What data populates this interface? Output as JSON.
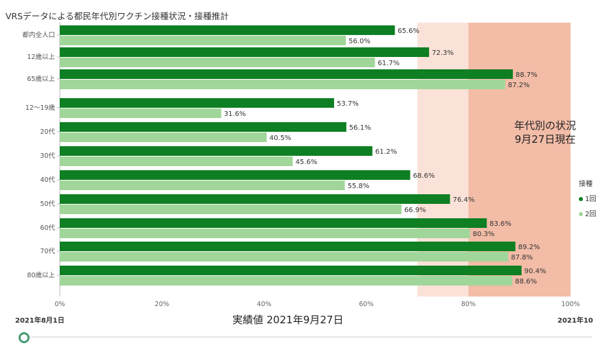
{
  "title": "VRSデータによる都民年代別ワクチン接種状況・接種推計",
  "note_lines": [
    "年代別の状況",
    "9月27日現在"
  ],
  "legend": {
    "title": "接種",
    "items": [
      {
        "label": "1回",
        "color": "#0e7f22"
      },
      {
        "label": "2回",
        "color": "#a1d69a"
      }
    ]
  },
  "slider": {
    "start_label": "2021年8月1日",
    "current_label": "実績値  2021年9月27日",
    "end_label": "2021年10",
    "progress": 0.0
  },
  "chart_data": {
    "type": "bar",
    "orientation": "horizontal",
    "categories": [
      "都内全人口",
      "12歳以上",
      "65歳以上",
      "12～19歳",
      "20代",
      "30代",
      "40代",
      "50代",
      "60代",
      "70代",
      "80歳以上"
    ],
    "series": [
      {
        "name": "1回",
        "color": "#0e7f22",
        "values": [
          65.6,
          72.3,
          88.7,
          53.7,
          56.1,
          61.2,
          68.6,
          76.4,
          83.6,
          89.2,
          90.4
        ]
      },
      {
        "name": "2回",
        "color": "#a1d69a",
        "values": [
          56.0,
          61.7,
          87.2,
          31.6,
          40.5,
          45.6,
          55.8,
          66.9,
          80.3,
          87.8,
          88.6
        ]
      }
    ],
    "value_labels": [
      [
        "65.6%",
        "72.3%",
        "88.7%",
        "53.7%",
        "56.1%",
        "61.2%",
        "68.6%",
        "76.4%",
        "83.6%",
        "89.2%",
        "90.4%"
      ],
      [
        "56.0%",
        "61.7%",
        "87.2%",
        "31.6%",
        "40.5%",
        "45.6%",
        "55.8%",
        "66.9%",
        "80.3%",
        "87.8%",
        "88.6%"
      ]
    ],
    "xlim": [
      0,
      100
    ],
    "xticks": [
      0,
      20,
      40,
      60,
      80,
      100
    ],
    "xtick_labels": [
      "0%",
      "20%",
      "40%",
      "60%",
      "80%",
      "100%"
    ],
    "shaded_bands": [
      {
        "from": 70,
        "to": 80,
        "color": "#fbe2d8"
      },
      {
        "from": 80,
        "to": 100,
        "color": "#f2bca7"
      }
    ],
    "grid": false
  }
}
